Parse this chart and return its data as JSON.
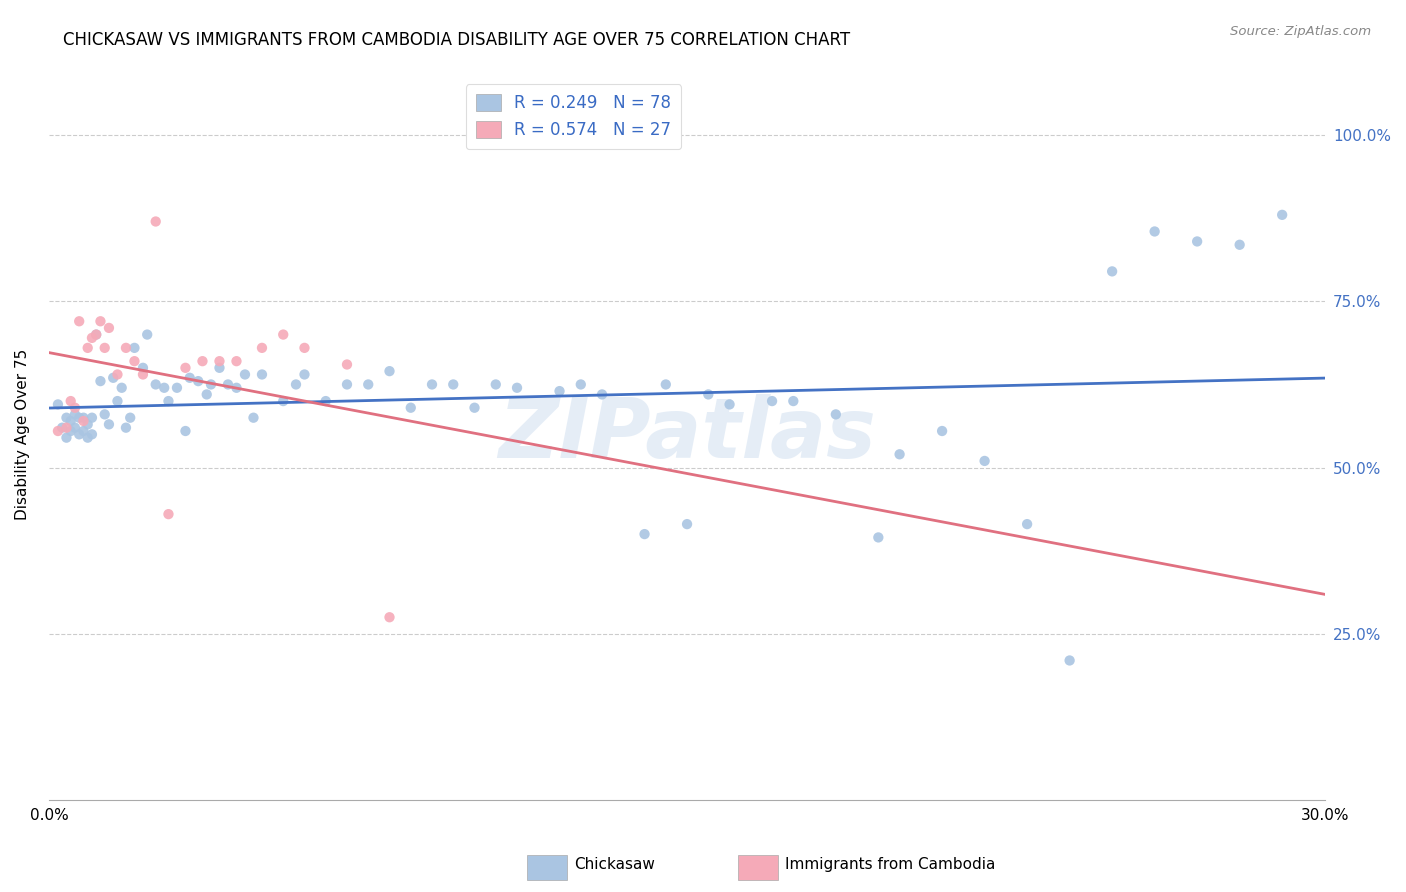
{
  "title": "CHICKASAW VS IMMIGRANTS FROM CAMBODIA DISABILITY AGE OVER 75 CORRELATION CHART",
  "source": "Source: ZipAtlas.com",
  "ylabel": "Disability Age Over 75",
  "x_min": 0.0,
  "x_max": 0.3,
  "y_min": 0.0,
  "y_max": 1.1,
  "x_tick_positions": [
    0.0,
    0.05,
    0.1,
    0.15,
    0.2,
    0.25,
    0.3
  ],
  "x_tick_labels": [
    "0.0%",
    "",
    "",
    "",
    "",
    "",
    "30.0%"
  ],
  "y_tick_positions": [
    0.25,
    0.5,
    0.75,
    1.0
  ],
  "y_tick_labels": [
    "25.0%",
    "50.0%",
    "75.0%",
    "100.0%"
  ],
  "chickasaw_R": 0.249,
  "chickasaw_N": 78,
  "cambodia_R": 0.574,
  "cambodia_N": 27,
  "chickasaw_color": "#aac5e2",
  "cambodia_color": "#f5aab8",
  "chickasaw_line_color": "#4472c4",
  "cambodia_line_color": "#e07080",
  "legend_label_chickasaw": "Chickasaw",
  "legend_label_cambodia": "Immigrants from Cambodia",
  "watermark": "ZIPatlas",
  "chickasaw_x": [
    0.002,
    0.003,
    0.004,
    0.004,
    0.005,
    0.005,
    0.006,
    0.006,
    0.007,
    0.007,
    0.008,
    0.008,
    0.009,
    0.009,
    0.01,
    0.01,
    0.011,
    0.012,
    0.013,
    0.014,
    0.015,
    0.016,
    0.017,
    0.018,
    0.019,
    0.02,
    0.022,
    0.023,
    0.025,
    0.027,
    0.028,
    0.03,
    0.032,
    0.033,
    0.035,
    0.037,
    0.038,
    0.04,
    0.042,
    0.044,
    0.046,
    0.048,
    0.05,
    0.055,
    0.058,
    0.06,
    0.065,
    0.07,
    0.075,
    0.08,
    0.085,
    0.09,
    0.095,
    0.1,
    0.105,
    0.11,
    0.12,
    0.125,
    0.13,
    0.14,
    0.145,
    0.15,
    0.155,
    0.16,
    0.17,
    0.175,
    0.185,
    0.195,
    0.2,
    0.21,
    0.22,
    0.23,
    0.24,
    0.25,
    0.26,
    0.27,
    0.28,
    0.29
  ],
  "chickasaw_y": [
    0.595,
    0.56,
    0.575,
    0.545,
    0.57,
    0.555,
    0.58,
    0.56,
    0.575,
    0.55,
    0.575,
    0.555,
    0.565,
    0.545,
    0.575,
    0.55,
    0.7,
    0.63,
    0.58,
    0.565,
    0.635,
    0.6,
    0.62,
    0.56,
    0.575,
    0.68,
    0.65,
    0.7,
    0.625,
    0.62,
    0.6,
    0.62,
    0.555,
    0.635,
    0.63,
    0.61,
    0.625,
    0.65,
    0.625,
    0.62,
    0.64,
    0.575,
    0.64,
    0.6,
    0.625,
    0.64,
    0.6,
    0.625,
    0.625,
    0.645,
    0.59,
    0.625,
    0.625,
    0.59,
    0.625,
    0.62,
    0.615,
    0.625,
    0.61,
    0.4,
    0.625,
    0.415,
    0.61,
    0.595,
    0.6,
    0.6,
    0.58,
    0.395,
    0.52,
    0.555,
    0.51,
    0.415,
    0.21,
    0.795,
    0.855,
    0.84,
    0.835,
    0.88
  ],
  "cambodia_x": [
    0.002,
    0.004,
    0.005,
    0.006,
    0.007,
    0.008,
    0.009,
    0.01,
    0.011,
    0.012,
    0.013,
    0.014,
    0.016,
    0.018,
    0.02,
    0.022,
    0.025,
    0.028,
    0.032,
    0.036,
    0.04,
    0.044,
    0.05,
    0.055,
    0.06,
    0.07,
    0.08
  ],
  "cambodia_y": [
    0.555,
    0.56,
    0.6,
    0.59,
    0.72,
    0.57,
    0.68,
    0.695,
    0.7,
    0.72,
    0.68,
    0.71,
    0.64,
    0.68,
    0.66,
    0.64,
    0.87,
    0.43,
    0.65,
    0.66,
    0.66,
    0.66,
    0.68,
    0.7,
    0.68,
    0.655,
    0.275
  ]
}
